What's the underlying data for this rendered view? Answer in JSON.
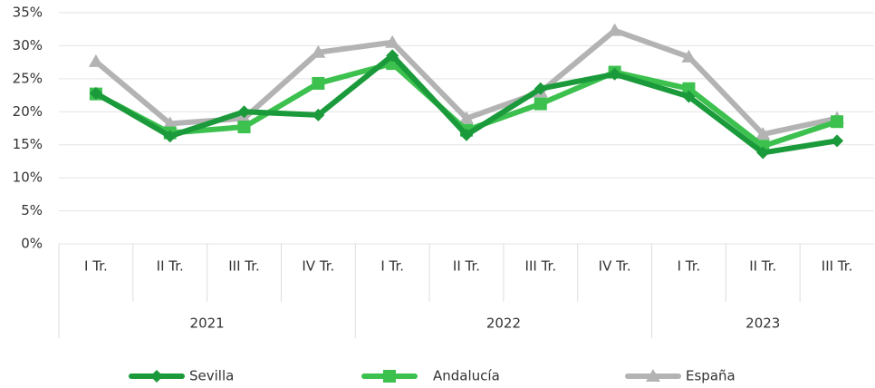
{
  "chart_data": {
    "type": "line",
    "categories": [
      "I Tr.",
      "II Tr.",
      "III Tr.",
      "IV Tr.",
      "I Tr.",
      "II Tr.",
      "III Tr.",
      "IV Tr.",
      "I Tr.",
      "II Tr.",
      "III Tr."
    ],
    "category_groups": [
      {
        "label": "2021",
        "size": 4
      },
      {
        "label": "2022",
        "size": 4
      },
      {
        "label": "2023",
        "size": 3
      }
    ],
    "series": [
      {
        "name": "Sevilla",
        "color": "#1a9a3a",
        "marker": "diamond",
        "values": [
          22.8,
          16.3,
          20.0,
          19.5,
          28.5,
          16.5,
          23.5,
          25.7,
          22.3,
          13.8,
          15.6
        ]
      },
      {
        "name": "Andalucía",
        "color": "#3cc04e",
        "marker": "square",
        "values": [
          22.7,
          16.8,
          17.7,
          24.3,
          27.3,
          17.2,
          21.2,
          26.0,
          23.5,
          14.8,
          18.5
        ]
      },
      {
        "name": "España",
        "color": "#b3b3b3",
        "marker": "triangle",
        "values": [
          27.6,
          18.2,
          19.0,
          29.0,
          30.5,
          19.0,
          23.0,
          32.3,
          28.3,
          16.6,
          19.0
        ]
      }
    ],
    "ylim": [
      0,
      35
    ],
    "yticks": [
      {
        "value": 0,
        "label": "0%"
      },
      {
        "value": 5,
        "label": "5%"
      },
      {
        "value": 10,
        "label": "10%"
      },
      {
        "value": 15,
        "label": "15%"
      },
      {
        "value": 20,
        "label": "20%"
      },
      {
        "value": 25,
        "label": "25%"
      },
      {
        "value": 30,
        "label": "30%"
      },
      {
        "value": 35,
        "label": "35%"
      }
    ],
    "grid": true,
    "legend": "bottom"
  }
}
